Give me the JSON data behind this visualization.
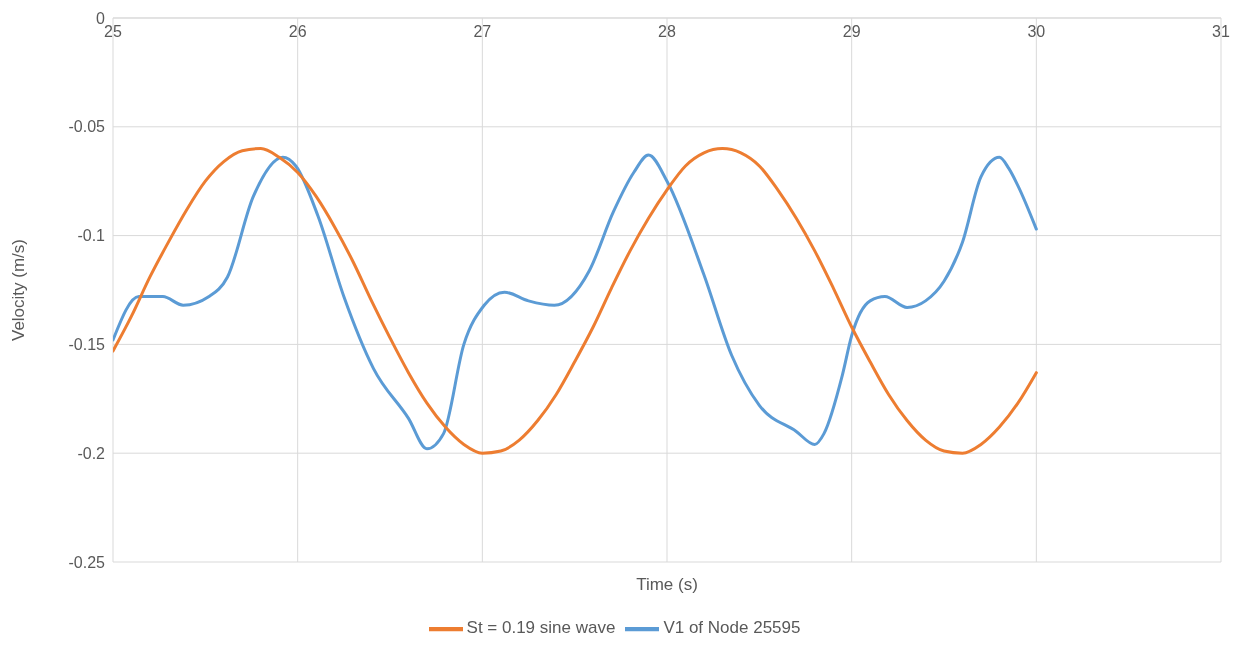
{
  "chart_data": {
    "type": "line",
    "xlabel": "Time (s)",
    "ylabel": "Velocity (m/s)",
    "xlim": [
      25,
      31
    ],
    "xticks": [
      25,
      26,
      27,
      28,
      29,
      30,
      31
    ],
    "ylim": [
      -0.25,
      0
    ],
    "yticks": [
      0,
      -0.05,
      -0.1,
      -0.15,
      -0.2,
      -0.25
    ],
    "grid": true,
    "legend": "bottom",
    "marker": "none",
    "line_style": "solid",
    "series": [
      {
        "name": "V1 of Node 25595",
        "color": "#5b9bd5",
        "x": [
          25,
          25.14,
          25.27,
          25.38,
          25.52,
          25.62,
          25.76,
          25.92,
          25.99,
          26.11,
          26.25,
          26.41,
          26.6,
          26.7,
          26.79,
          26.9,
          27.01,
          27.12,
          27.25,
          27.39,
          27.58,
          27.71,
          27.82,
          27.9,
          28.0,
          28.2,
          28.35,
          28.5,
          28.7,
          28.8,
          28.85,
          28.95,
          29.0,
          29.1,
          29.18,
          29.3,
          29.4,
          29.5,
          29.6,
          29.7,
          29.8,
          29.85,
          29.9,
          30.0
        ],
        "values": [
          -0.148,
          -0.128,
          -0.128,
          -0.132,
          -0.128,
          -0.119,
          -0.082,
          -0.064,
          -0.068,
          -0.091,
          -0.128,
          -0.161,
          -0.184,
          -0.198,
          -0.191,
          -0.15,
          -0.132,
          -0.126,
          -0.13,
          -0.132,
          -0.116,
          -0.089,
          -0.071,
          -0.063,
          -0.075,
          -0.118,
          -0.155,
          -0.178,
          -0.19,
          -0.196,
          -0.191,
          -0.164,
          -0.146,
          -0.13,
          -0.128,
          -0.133,
          -0.13,
          -0.121,
          -0.103,
          -0.073,
          -0.064,
          -0.069,
          -0.077,
          -0.097
        ]
      },
      {
        "name": "St = 0.19 sine wave",
        "color": "#ed7d31",
        "x": [
          25,
          25.1,
          25.2,
          25.3,
          25.4,
          25.5,
          25.6,
          25.7,
          25.8,
          25.9,
          26,
          26.1,
          26.2,
          26.3,
          26.4,
          26.5,
          26.6,
          26.7,
          26.8,
          26.9,
          27,
          27.1,
          27.2,
          27.3,
          27.4,
          27.5,
          27.6,
          27.7,
          27.8,
          27.9,
          28,
          28.1,
          28.2,
          28.3,
          28.4,
          28.5,
          28.6,
          28.7,
          28.8,
          28.9,
          29,
          29.1,
          29.2,
          29.3,
          29.4,
          29.5,
          29.6,
          29.7,
          29.8,
          29.9,
          30
        ],
        "values": [
          -0.153,
          -0.137,
          -0.119,
          -0.103,
          -0.088,
          -0.075,
          -0.066,
          -0.061,
          -0.06,
          -0.064,
          -0.071,
          -0.082,
          -0.096,
          -0.112,
          -0.13,
          -0.147,
          -0.163,
          -0.177,
          -0.188,
          -0.196,
          -0.2,
          -0.199,
          -0.194,
          -0.185,
          -0.173,
          -0.158,
          -0.142,
          -0.124,
          -0.107,
          -0.092,
          -0.079,
          -0.068,
          -0.062,
          -0.06,
          -0.062,
          -0.068,
          -0.079,
          -0.092,
          -0.107,
          -0.124,
          -0.142,
          -0.158,
          -0.173,
          -0.185,
          -0.194,
          -0.199,
          -0.2,
          -0.196,
          -0.188,
          -0.177,
          -0.163
        ]
      }
    ]
  }
}
